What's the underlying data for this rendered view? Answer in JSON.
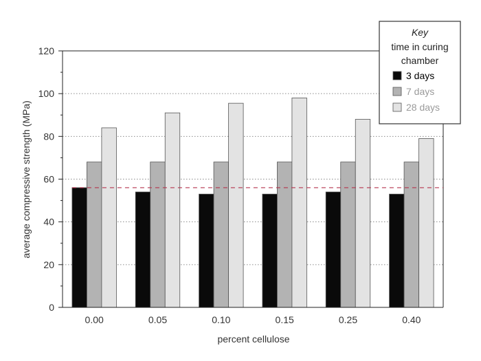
{
  "chart_data": {
    "type": "bar",
    "title": "",
    "xlabel": "percent cellulose",
    "ylabel": "average compressive strength (MPa)",
    "categories": [
      "0.00",
      "0.05",
      "0.10",
      "0.15",
      "0.25",
      "0.40"
    ],
    "highlight_category_color": "#b5334c",
    "series": [
      {
        "name": "3 days",
        "values": [
          56,
          54,
          53,
          53,
          54,
          53
        ],
        "color": "#0a0a0a",
        "text_color": "#000000"
      },
      {
        "name": "7 days",
        "values": [
          68,
          68,
          68,
          68,
          68,
          68
        ],
        "color": "#b3b3b3",
        "text_color": "#9a9a9a"
      },
      {
        "name": "28 days",
        "values": [
          84,
          91,
          95.5,
          98,
          88,
          79
        ],
        "color": "#e3e3e3",
        "text_color": "#9a9a9a"
      }
    ],
    "ylim": [
      0,
      120
    ],
    "yticks": [
      0,
      20,
      40,
      60,
      80,
      100,
      120
    ],
    "grid": "horizontal dotted",
    "reference_line": {
      "value": 56,
      "color": "#b5334c",
      "style": "dashed"
    },
    "legend": {
      "placement": "top-right",
      "title_italic": "Key",
      "subtitle_line1": "time in curing",
      "subtitle_line2": "chamber"
    }
  }
}
